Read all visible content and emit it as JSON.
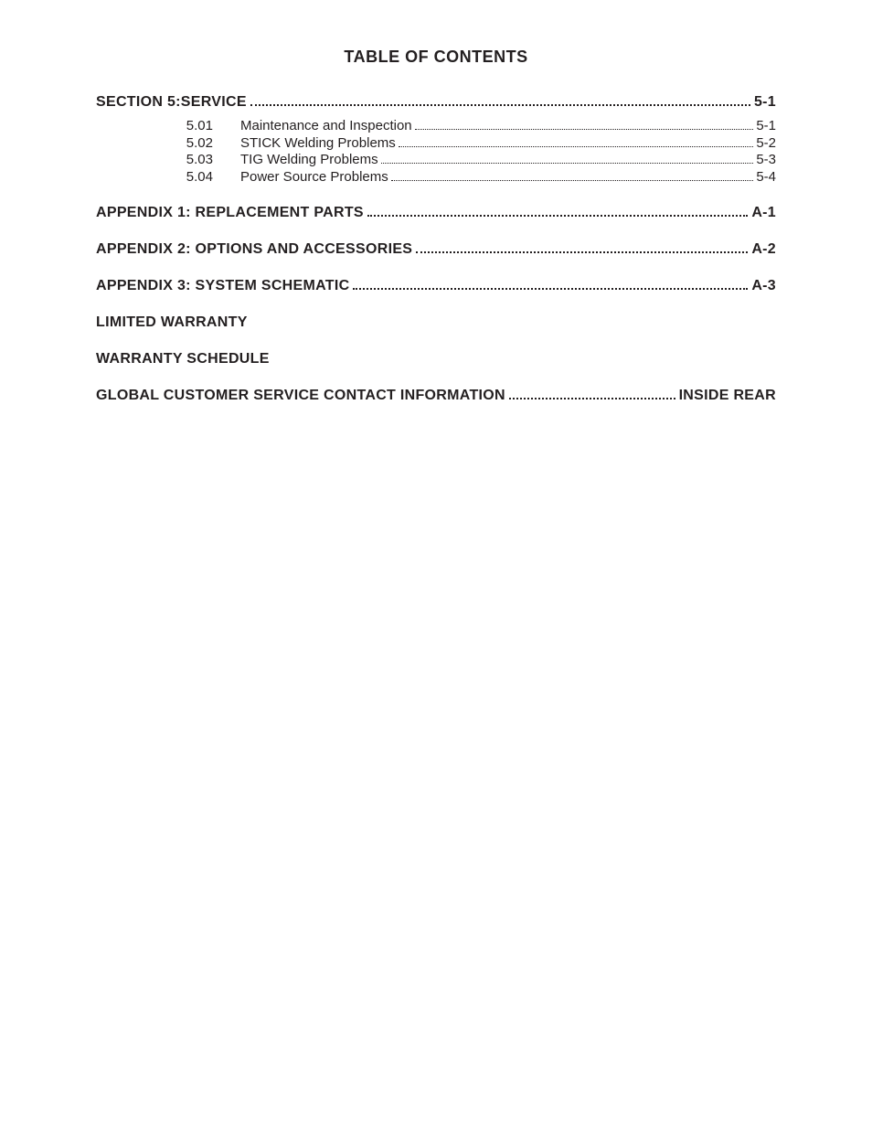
{
  "title": "TABLE OF CONTENTS",
  "text_color": "#231f20",
  "background_color": "#ffffff",
  "title_fontsize": 18,
  "section_fontsize": 16,
  "sub_fontsize": 15,
  "sections": [
    {
      "label": "SECTION 5:SERVICE",
      "page": "5-1",
      "items": [
        {
          "num": "5.01",
          "label": "Maintenance and Inspection",
          "page": "5-1"
        },
        {
          "num": "5.02",
          "label": "STICK Welding Problems",
          "page": "5-2"
        },
        {
          "num": "5.03",
          "label": "TIG Welding Problems",
          "page": "5-3"
        },
        {
          "num": "5.04",
          "label": "Power Source Problems",
          "page": "5-4"
        }
      ]
    },
    {
      "label": "APPENDIX 1: REPLACEMENT PARTS",
      "page": "A-1",
      "items": []
    },
    {
      "label": "APPENDIX 2: OPTIONS AND ACCESSORIES",
      "page": "A-2",
      "items": []
    },
    {
      "label": "APPENDIX 3: SYSTEM SCHEMATIC",
      "page": "A-3",
      "items": []
    },
    {
      "label": "LIMITED WARRANTY",
      "page": "",
      "items": []
    },
    {
      "label": "WARRANTY SCHEDULE",
      "page": "",
      "items": []
    },
    {
      "label": "GLOBAL CUSTOMER SERVICE CONTACT INFORMATION",
      "page": "INSIDE REAR",
      "items": []
    }
  ]
}
